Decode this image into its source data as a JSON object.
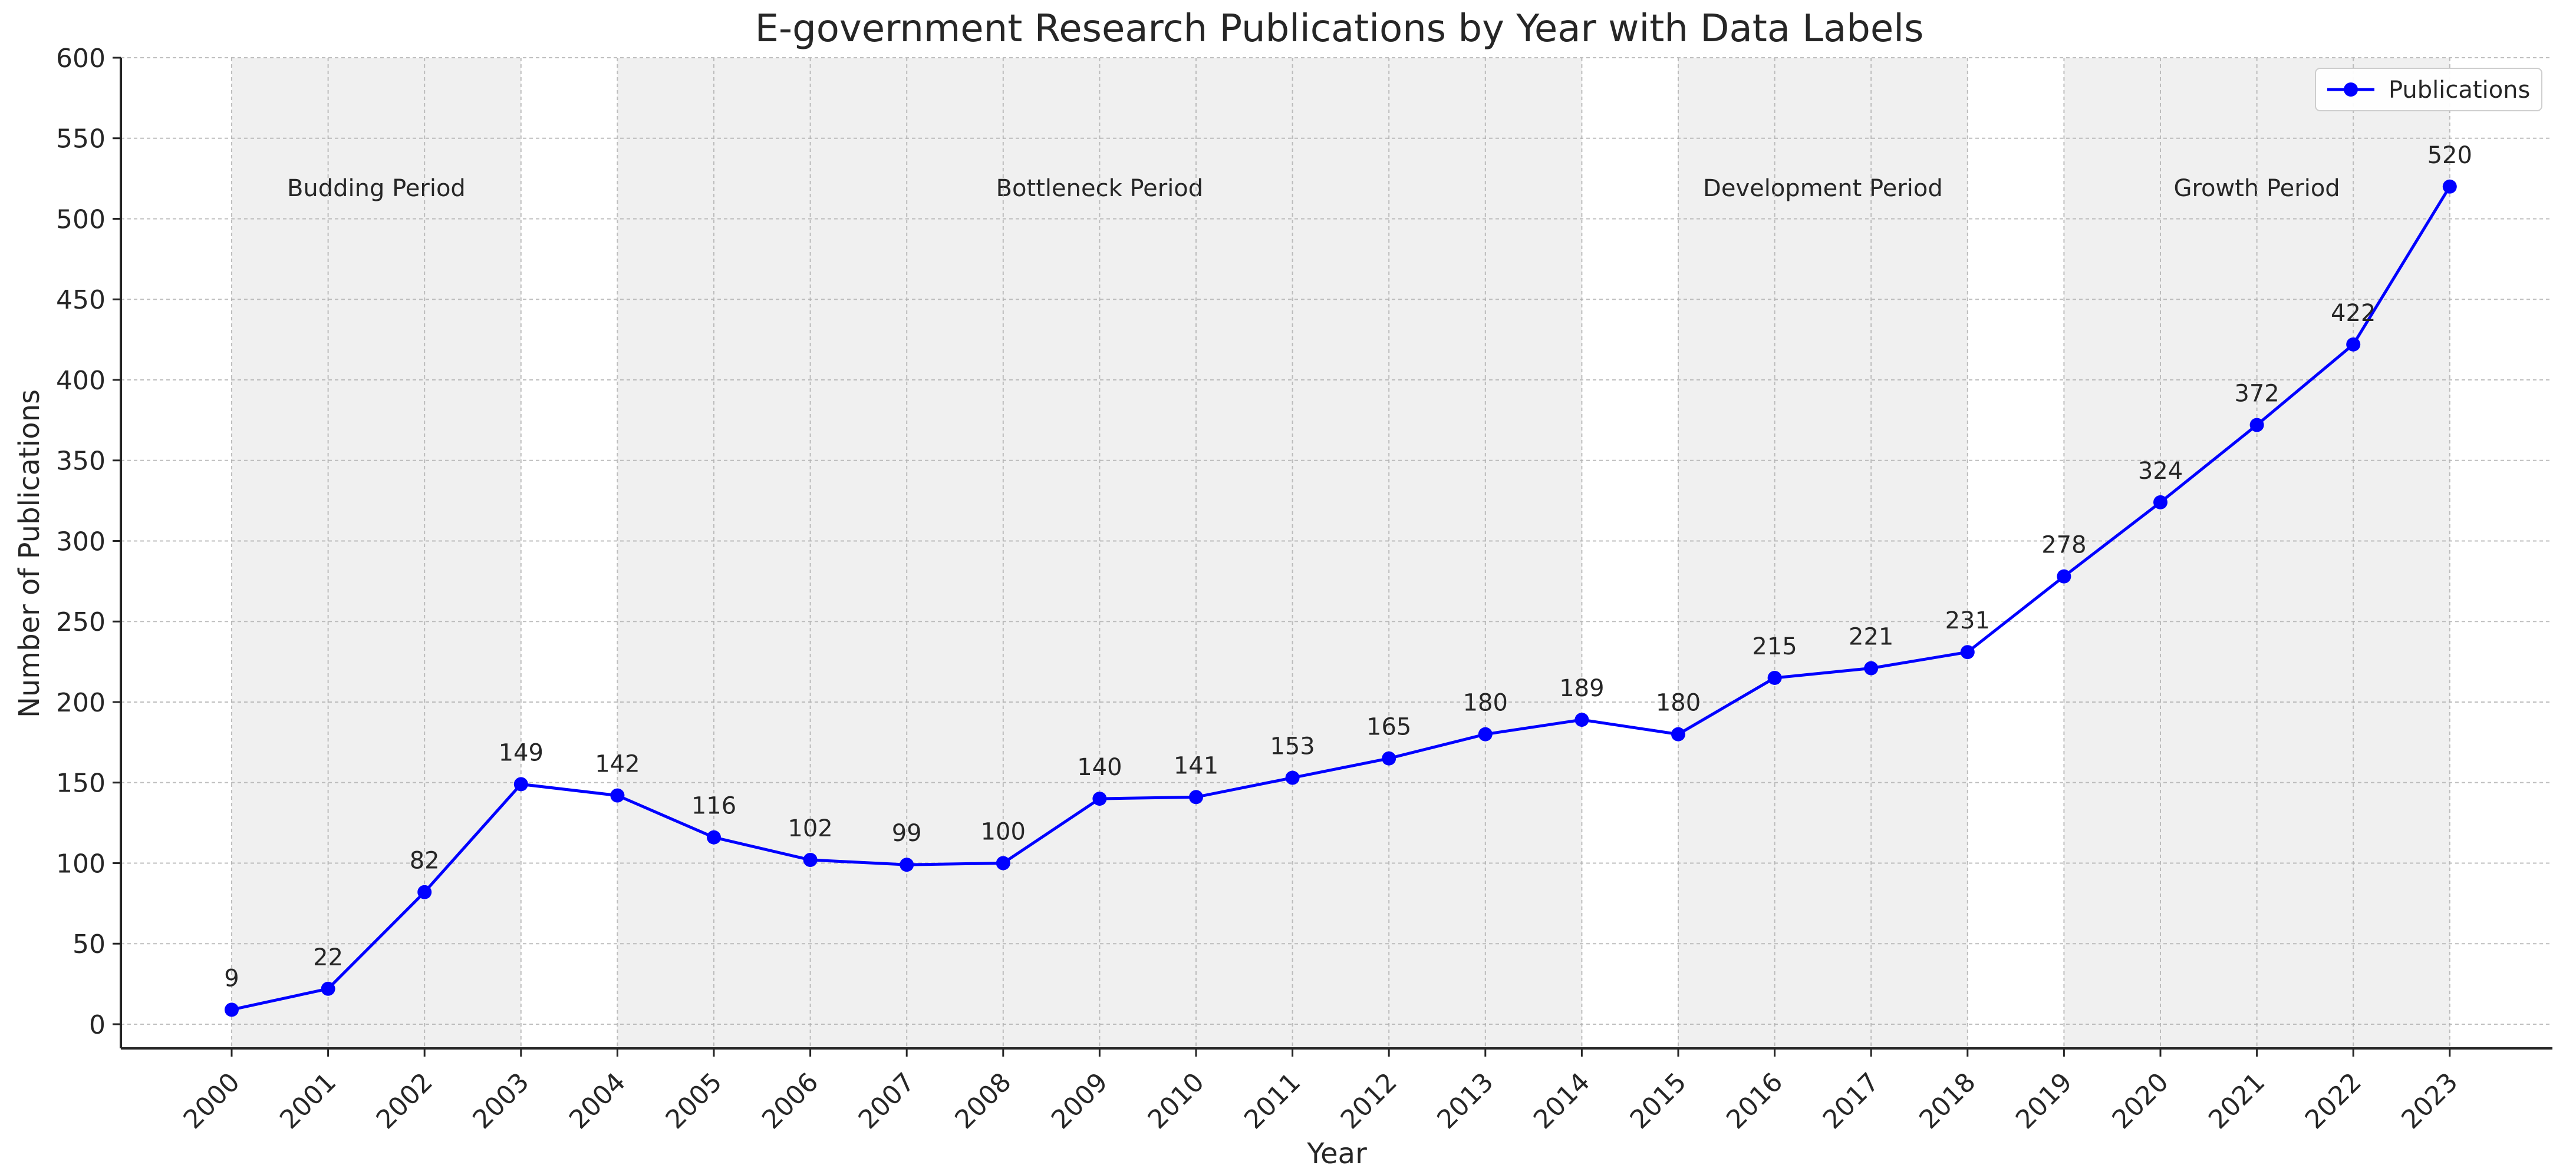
{
  "chart_data": {
    "type": "line",
    "title": "E-government Research Publications by Year with Data Labels",
    "xlabel": "Year",
    "ylabel": "Number of Publications",
    "ylim": [
      -15,
      600
    ],
    "yticks": [
      0,
      50,
      100,
      150,
      200,
      250,
      300,
      350,
      400,
      450,
      500,
      550,
      600
    ],
    "grid": true,
    "legend_position": "top-right",
    "x": [
      2000,
      2001,
      2002,
      2003,
      2004,
      2005,
      2006,
      2007,
      2008,
      2009,
      2010,
      2011,
      2012,
      2013,
      2014,
      2015,
      2016,
      2017,
      2018,
      2019,
      2020,
      2021,
      2022,
      2023
    ],
    "x_tick_labels": [
      "2000",
      "2001",
      "2002",
      "2003",
      "2004",
      "2005",
      "2006",
      "2007",
      "2008",
      "2009",
      "2010",
      "2011",
      "2012",
      "2013",
      "2014",
      "2015",
      "2016",
      "2017",
      "2018",
      "2019",
      "2020",
      "2021",
      "2022",
      "2023"
    ],
    "series": [
      {
        "name": "Publications",
        "color": "#0000ff",
        "marker": "circle",
        "values": [
          9,
          22,
          82,
          149,
          142,
          116,
          102,
          99,
          100,
          140,
          141,
          153,
          165,
          180,
          189,
          180,
          215,
          221,
          231,
          278,
          324,
          372,
          422,
          520
        ]
      }
    ],
    "data_labels": [
      "9",
      "22",
      "82",
      "149",
      "142",
      "116",
      "102",
      "99",
      "100",
      "140",
      "141",
      "153",
      "165",
      "180",
      "189",
      "180",
      "215",
      "221",
      "231",
      "278",
      "324",
      "372",
      "422",
      "520"
    ],
    "periods": [
      {
        "label": "Budding Period",
        "start": 2000,
        "end": 2003
      },
      {
        "label": "Bottleneck Period",
        "start": 2004,
        "end": 2014
      },
      {
        "label": "Development Period",
        "start": 2015,
        "end": 2018
      },
      {
        "label": "Growth Period",
        "start": 2019,
        "end": 2023
      }
    ],
    "colors": {
      "line": "#0000ff",
      "shade": "#f0f0f0",
      "grid": "#b0b0b0",
      "axis": "#262626",
      "text": "#262626"
    }
  }
}
